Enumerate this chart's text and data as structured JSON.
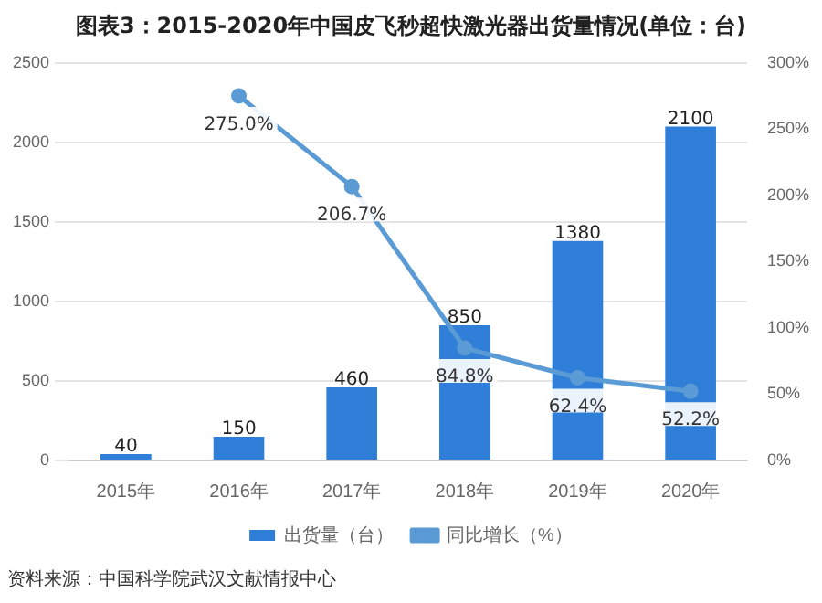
{
  "chart_data": {
    "type": "bar",
    "title": "图表3：2015-2020年中国皮飞秒超快激光器出货量情况(单位：台)",
    "categories": [
      "2015年",
      "2016年",
      "2017年",
      "2018年",
      "2019年",
      "2020年"
    ],
    "series": [
      {
        "name": "出货量（台）",
        "color": "#2f7fd8",
        "values": [
          40,
          150,
          460,
          850,
          1380,
          2100
        ],
        "value_labels": [
          "40",
          "150",
          "460",
          "850",
          "1380",
          "2100"
        ]
      },
      {
        "name": "同比增长（%）",
        "type": "line",
        "axis": "y2",
        "color": "#5b9bd5",
        "values": [
          null,
          275.0,
          206.7,
          84.8,
          62.4,
          52.2
        ],
        "value_labels": [
          null,
          "275.0%",
          "206.7%",
          "84.8%",
          "62.4%",
          "52.2%"
        ]
      }
    ],
    "ylim": [
      0,
      2500
    ],
    "yticks": [
      0,
      500,
      1000,
      1500,
      2000,
      2500
    ],
    "y2lim": [
      0,
      300
    ],
    "y2ticks": [
      {
        "value": 0,
        "label": "0%"
      },
      {
        "value": 50,
        "label": "50%"
      },
      {
        "value": 100,
        "label": "100%"
      },
      {
        "value": 150,
        "label": "150%"
      },
      {
        "value": 200,
        "label": "200%"
      },
      {
        "value": 250,
        "label": "250%"
      },
      {
        "value": 300,
        "label": "300%"
      }
    ],
    "grid": "y",
    "legend": "bottom",
    "marker": "circle",
    "annotations": [
      "资料来源：中国科学院武汉文献情报中心"
    ]
  }
}
